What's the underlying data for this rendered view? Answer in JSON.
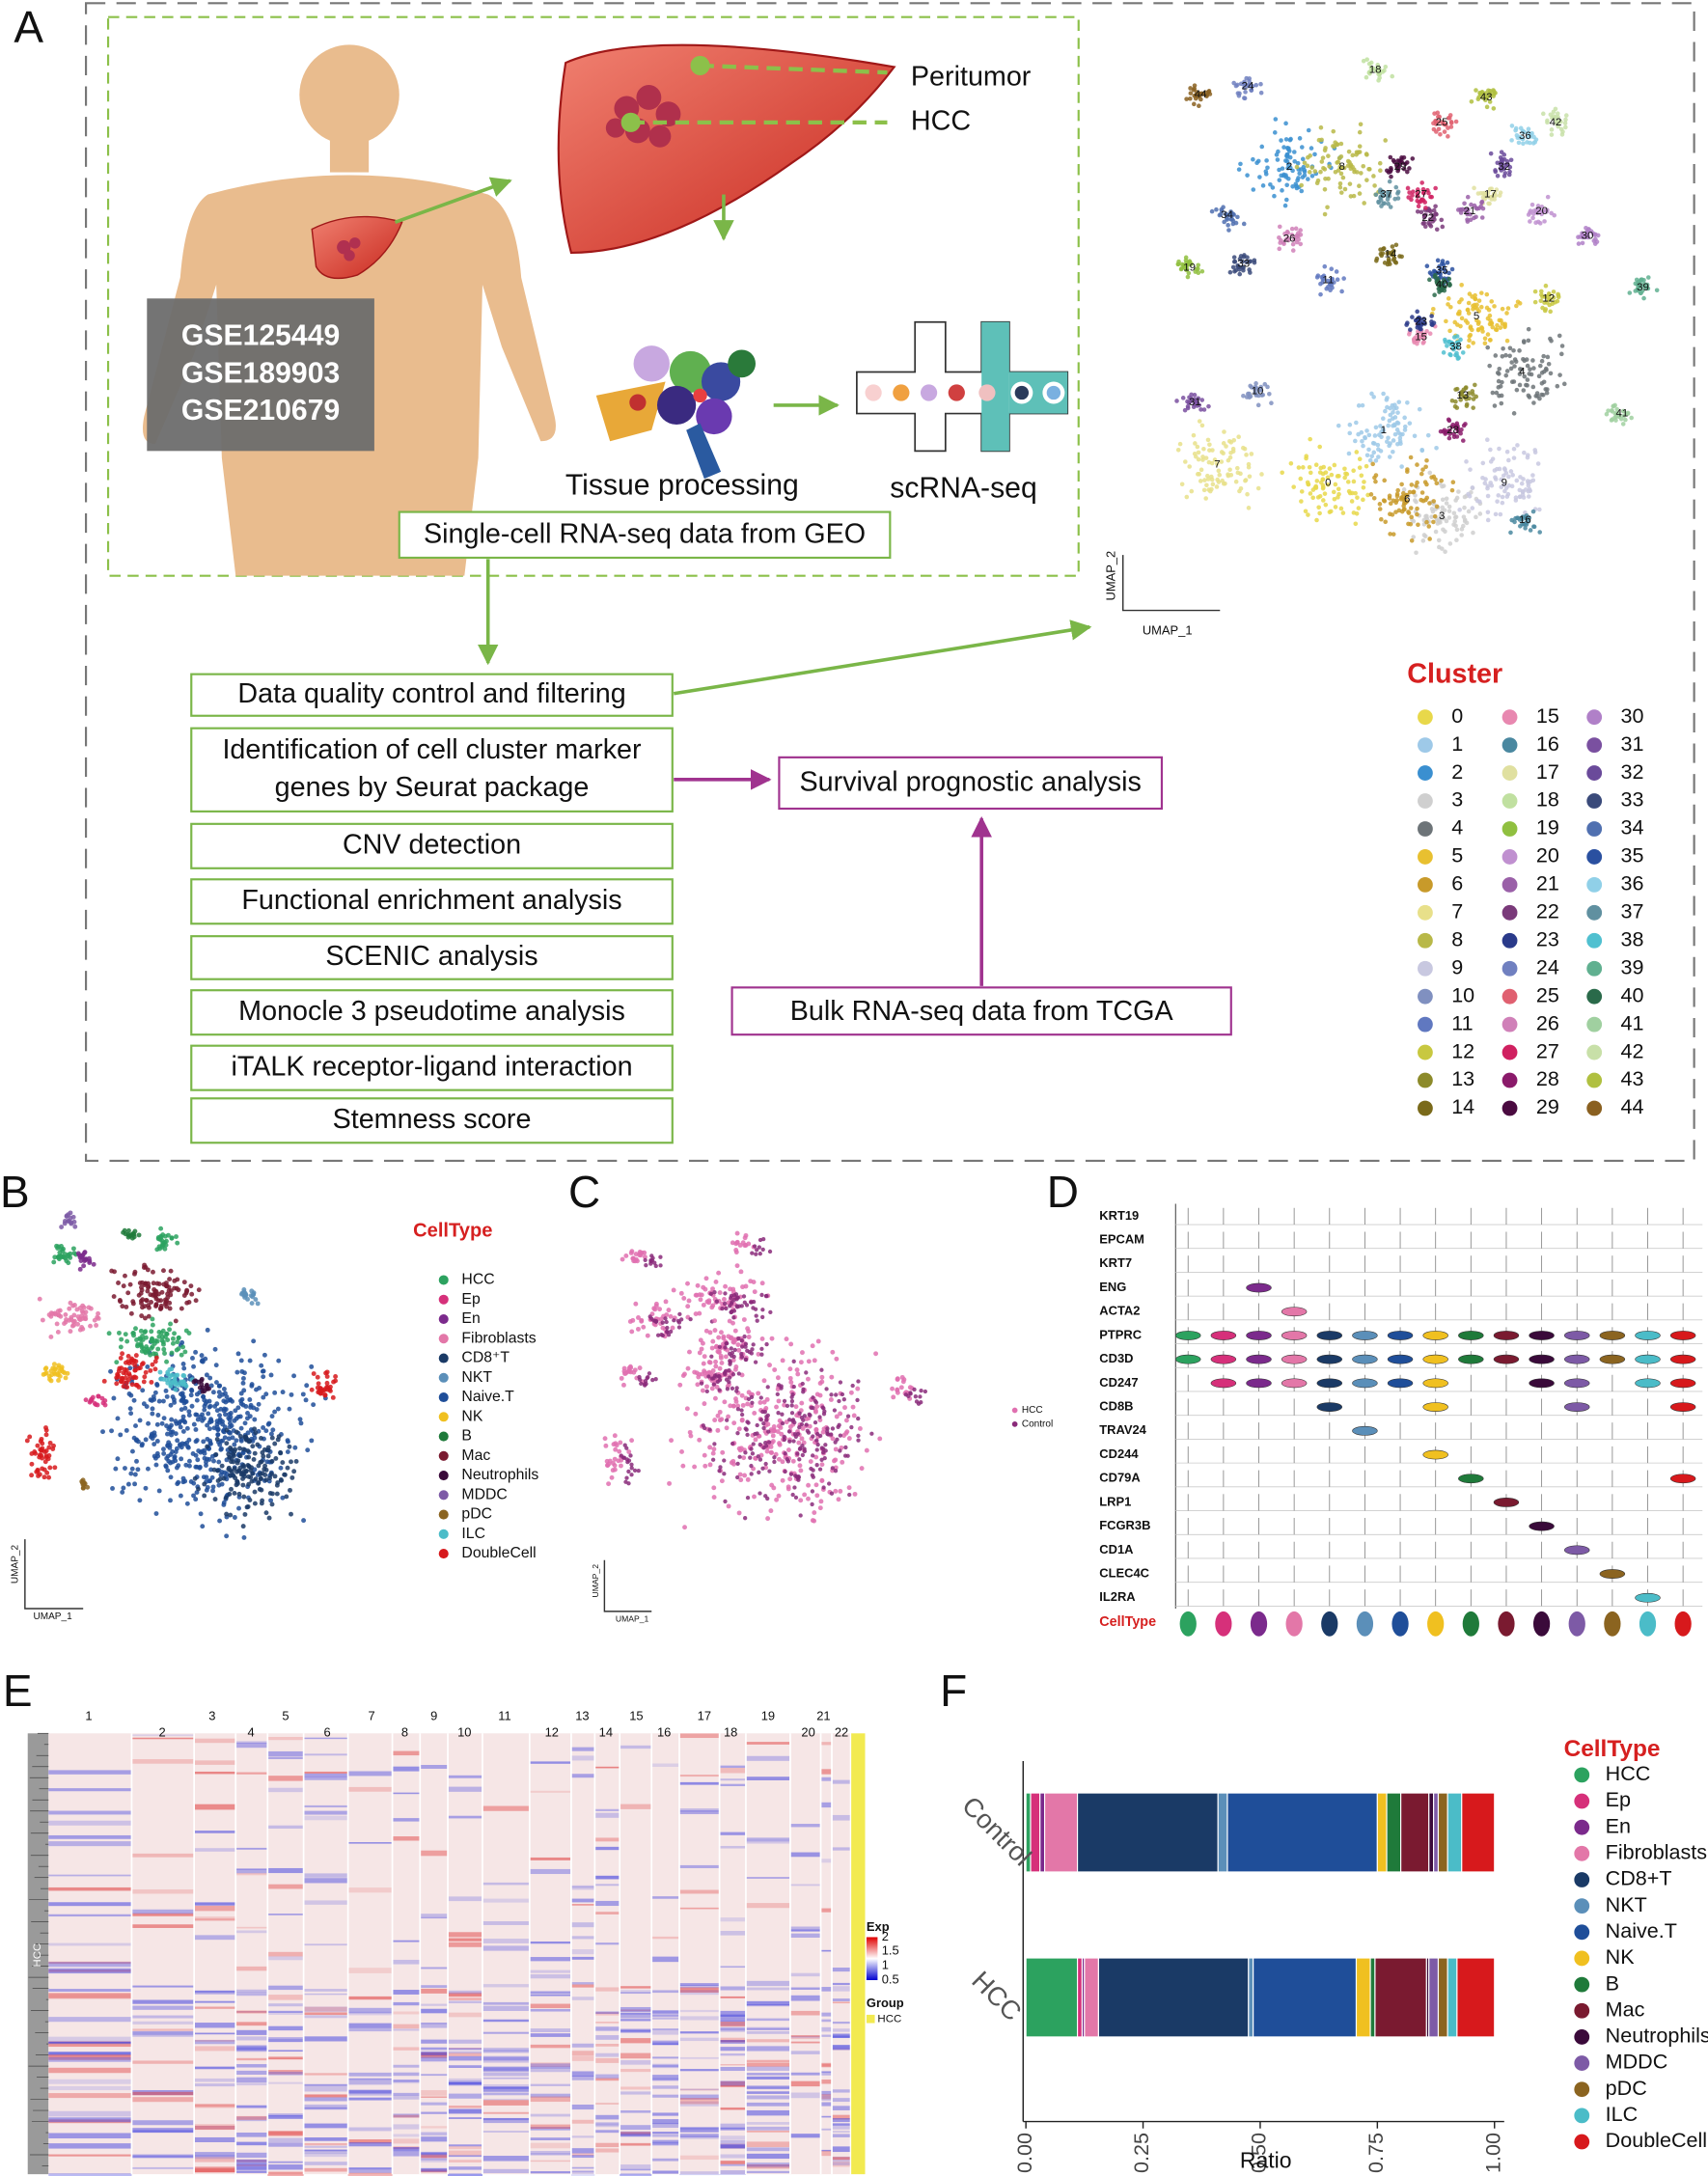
{
  "panel_a": {
    "label": "A",
    "peritumor": "Peritumor",
    "hcc": "HCC",
    "datasets": [
      "GSE125449",
      "GSE189903",
      "GSE210679"
    ],
    "tissue_processing": "Tissue processing",
    "scrna_seq": "scRNA-seq",
    "geo_box": "Single-cell RNA-seq data from GEO",
    "workflow": [
      {
        "lines": [
          "Data quality control and filtering"
        ]
      },
      {
        "lines": [
          "Identification of cell cluster marker",
          "genes by Seurat package"
        ]
      },
      {
        "lines": [
          "CNV detection"
        ]
      },
      {
        "lines": [
          "Functional enrichment analysis"
        ]
      },
      {
        "lines": [
          "SCENIC analysis"
        ]
      },
      {
        "lines": [
          "Monocle 3 pseudotime analysis"
        ]
      },
      {
        "lines": [
          "iTALK receptor-ligand interaction"
        ]
      },
      {
        "lines": [
          "Stemness score"
        ]
      }
    ],
    "survival": "Survival prognostic analysis",
    "bulk": "Bulk RNA-seq data from TCGA",
    "umap_x": "UMAP_1",
    "umap_y": "UMAP_2",
    "cluster_title": "Cluster",
    "clusters": [
      {
        "label": 0,
        "color": "#e8d84a"
      },
      {
        "label": 1,
        "color": "#9ec9e8"
      },
      {
        "label": 2,
        "color": "#3a8fd0"
      },
      {
        "label": 3,
        "color": "#cfcfcf"
      },
      {
        "label": 4,
        "color": "#6d7478"
      },
      {
        "label": 5,
        "color": "#e8c030"
      },
      {
        "label": 6,
        "color": "#c89a2a"
      },
      {
        "label": 7,
        "color": "#e8e08a"
      },
      {
        "label": 8,
        "color": "#b8b848"
      },
      {
        "label": 9,
        "color": "#c8c8e0"
      },
      {
        "label": 10,
        "color": "#8090c0"
      },
      {
        "label": 11,
        "color": "#6078c0"
      },
      {
        "label": 12,
        "color": "#c8c840"
      },
      {
        "label": 13,
        "color": "#8c8a2a"
      },
      {
        "label": 14,
        "color": "#7a6a1a"
      },
      {
        "label": 15,
        "color": "#e888b0"
      },
      {
        "label": 16,
        "color": "#4a88a0"
      },
      {
        "label": 17,
        "color": "#e0e0a0"
      },
      {
        "label": 18,
        "color": "#c0e0a0"
      },
      {
        "label": 19,
        "color": "#90c040"
      },
      {
        "label": 20,
        "color": "#c090d0"
      },
      {
        "label": 21,
        "color": "#9a60a8"
      },
      {
        "label": 22,
        "color": "#7a3a7a"
      },
      {
        "label": 23,
        "color": "#2a3a8a"
      },
      {
        "label": 24,
        "color": "#7080c0"
      },
      {
        "label": 25,
        "color": "#e06070"
      },
      {
        "label": 26,
        "color": "#d080b8"
      },
      {
        "label": 27,
        "color": "#d02060"
      },
      {
        "label": 28,
        "color": "#8a1a6a"
      },
      {
        "label": 29,
        "color": "#4a0a40"
      },
      {
        "label": 30,
        "color": "#b080c8"
      },
      {
        "label": 31,
        "color": "#7a50a0"
      },
      {
        "label": 32,
        "color": "#6a4a9a"
      },
      {
        "label": 33,
        "color": "#3a4a7a"
      },
      {
        "label": 34,
        "color": "#5070b0"
      },
      {
        "label": 35,
        "color": "#2a50a0"
      },
      {
        "label": 36,
        "color": "#90d0e8"
      },
      {
        "label": 37,
        "color": "#6090a0"
      },
      {
        "label": 38,
        "color": "#50c0d0"
      },
      {
        "label": 39,
        "color": "#60b090"
      },
      {
        "label": 40,
        "color": "#2a6a4a"
      },
      {
        "label": 41,
        "color": "#a0d0a0"
      },
      {
        "label": 42,
        "color": "#c8e0a8"
      },
      {
        "label": 43,
        "color": "#b0c040"
      },
      {
        "label": 44,
        "color": "#8a6020"
      }
    ]
  },
  "panel_b": {
    "label": "B",
    "legend_title": "CellType",
    "umap_x": "UMAP_1",
    "umap_y": "UMAP_2",
    "cell_types": [
      {
        "name": "HCC",
        "color": "#2ca25f"
      },
      {
        "name": "Ep",
        "color": "#d6307a"
      },
      {
        "name": "En",
        "color": "#7b2a8c"
      },
      {
        "name": "Fibroblasts",
        "color": "#e377a8"
      },
      {
        "name": "CD8⁺T",
        "color": "#1a3a66"
      },
      {
        "name": "NKT",
        "color": "#5b8fb9"
      },
      {
        "name": "Naive.T",
        "color": "#1f4e99"
      },
      {
        "name": "NK",
        "color": "#f0c020"
      },
      {
        "name": "B",
        "color": "#1f7a3a"
      },
      {
        "name": "Mac",
        "color": "#7a1a30"
      },
      {
        "name": "Neutrophils",
        "color": "#3a0a3a"
      },
      {
        "name": "MDDC",
        "color": "#7d5aa6"
      },
      {
        "name": "pDC",
        "color": "#8b6420"
      },
      {
        "name": "ILC",
        "color": "#4bbcc8"
      },
      {
        "name": "DoubleCell",
        "color": "#d7191c"
      }
    ]
  },
  "panel_c": {
    "label": "C",
    "umap_x": "UMAP_1",
    "umap_y": "UMAP_2",
    "groups": [
      {
        "name": "HCC",
        "color": "#e070b0"
      },
      {
        "name": "Control",
        "color": "#8a2a7a"
      }
    ]
  },
  "panel_d": {
    "label": "D",
    "genes": [
      "KRT19",
      "EPCAM",
      "KRT7",
      "ENG",
      "ACTA2",
      "PTPRC",
      "CD3D",
      "CD247",
      "CD8B",
      "TRAV24",
      "CD244",
      "CD79A",
      "LRP1",
      "FCGR3B",
      "CD1A",
      "CLEC4C",
      "IL2RA"
    ],
    "celltype_label": "CellType"
  },
  "panel_e": {
    "label": "E",
    "chromosomes": [
      1,
      2,
      3,
      4,
      5,
      6,
      7,
      8,
      9,
      10,
      11,
      12,
      13,
      14,
      15,
      16,
      17,
      18,
      19,
      20,
      21,
      22
    ],
    "row_label": "HCC",
    "exp_title": "Exp",
    "exp_ticks": [
      2,
      1.5,
      1,
      0.5
    ],
    "group_title": "Group",
    "group_value": "HCC"
  },
  "panel_f": {
    "label": "F",
    "type": "bar",
    "orientation": "horizontal",
    "stacked": true,
    "categories": [
      "Control",
      "HCC"
    ],
    "series": [
      {
        "name": "HCC",
        "color": "#2ca25f",
        "values": [
          0.01,
          0.11
        ]
      },
      {
        "name": "Ep",
        "color": "#d6307a",
        "values": [
          0.02,
          0.01
        ]
      },
      {
        "name": "En",
        "color": "#7b2a8c",
        "values": [
          0.01,
          0.005
        ]
      },
      {
        "name": "Fibroblasts",
        "color": "#e377a8",
        "values": [
          0.07,
          0.03
        ]
      },
      {
        "name": "CD8+T",
        "color": "#1a3a66",
        "values": [
          0.3,
          0.32
        ]
      },
      {
        "name": "NKT",
        "color": "#5b8fb9",
        "values": [
          0.02,
          0.01
        ]
      },
      {
        "name": "Naive.T",
        "color": "#1f4e99",
        "values": [
          0.32,
          0.22
        ]
      },
      {
        "name": "NK",
        "color": "#f0c020",
        "values": [
          0.02,
          0.03
        ]
      },
      {
        "name": "B",
        "color": "#1f7a3a",
        "values": [
          0.03,
          0.01
        ]
      },
      {
        "name": "Mac",
        "color": "#7a1a30",
        "values": [
          0.06,
          0.11
        ]
      },
      {
        "name": "Neutrophils",
        "color": "#3a0a3a",
        "values": [
          0.01,
          0.005
        ]
      },
      {
        "name": "MDDC",
        "color": "#7d5aa6",
        "values": [
          0.01,
          0.02
        ]
      },
      {
        "name": "pDC",
        "color": "#8b6420",
        "values": [
          0.02,
          0.02
        ]
      },
      {
        "name": "ILC",
        "color": "#4bbcc8",
        "values": [
          0.03,
          0.02
        ]
      },
      {
        "name": "DoubleCell",
        "color": "#d7191c",
        "values": [
          0.07,
          0.08
        ]
      }
    ],
    "xlim": [
      0,
      1
    ],
    "xticks": [
      {
        "value": 0,
        "label": "0.00"
      },
      {
        "value": 0.25,
        "label": "0.25"
      },
      {
        "value": 0.5,
        "label": "0.50"
      },
      {
        "value": 0.75,
        "label": "0.75"
      },
      {
        "value": 1,
        "label": "1.00"
      }
    ],
    "xlabel": "Ratio",
    "legend_title": "CellType"
  }
}
